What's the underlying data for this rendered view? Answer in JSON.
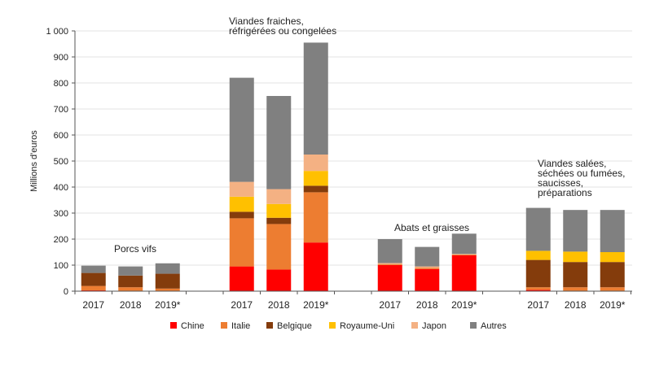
{
  "chart_data": {
    "type": "bar",
    "stacked": true,
    "ylabel": "Millions d'euros",
    "ylim": [
      0,
      1000
    ],
    "yticks": [
      0,
      100,
      200,
      300,
      400,
      500,
      600,
      700,
      800,
      900,
      1000
    ],
    "ytick_labels": [
      "0",
      "100",
      "200",
      "300",
      "400",
      "500",
      "600",
      "700",
      "800",
      "900",
      "1 000"
    ],
    "grid": true,
    "legend_position": "bottom",
    "groups": [
      {
        "label": "Porcs vifs",
        "categories": [
          "2017",
          "2018",
          "2019*"
        ]
      },
      {
        "label": "Viandes fraiches, réfrigérées ou congelées",
        "label_lines": [
          "Viandes fraiches,",
          "réfrigérées ou congelées"
        ],
        "categories": [
          "2017",
          "2018",
          "2019*"
        ]
      },
      {
        "label": "Abats et graisses",
        "categories": [
          "2017",
          "2018",
          "2019*"
        ]
      },
      {
        "label": "Viandes salées, séchées ou fumées, saucisses, préparations",
        "label_lines": [
          "Viandes salées,",
          "séchées ou fumées,",
          "saucisses,",
          "préparations"
        ],
        "categories": [
          "2017",
          "2018",
          "2019*"
        ]
      }
    ],
    "series": [
      {
        "name": "Chine",
        "color": "#ff0000",
        "values": [
          [
            3,
            0,
            0
          ],
          [
            95,
            83,
            187
          ],
          [
            100,
            85,
            138
          ],
          [
            5,
            0,
            0
          ]
        ]
      },
      {
        "name": "Italie",
        "color": "#ed7d31",
        "values": [
          [
            17,
            15,
            10
          ],
          [
            185,
            175,
            193
          ],
          [
            3,
            5,
            3
          ],
          [
            10,
            15,
            15
          ]
        ]
      },
      {
        "name": "Belgique",
        "color": "#843c0c",
        "values": [
          [
            50,
            45,
            57
          ],
          [
            25,
            24,
            25
          ],
          [
            0,
            0,
            0
          ],
          [
            105,
            97,
            97
          ]
        ]
      },
      {
        "name": "Royaume-Uni",
        "color": "#ffc000",
        "values": [
          [
            0,
            0,
            0
          ],
          [
            58,
            53,
            57
          ],
          [
            0,
            0,
            0
          ],
          [
            35,
            40,
            38
          ]
        ]
      },
      {
        "name": "Japon",
        "color": "#f4b183",
        "values": [
          [
            0,
            0,
            0
          ],
          [
            57,
            57,
            63
          ],
          [
            5,
            5,
            2
          ],
          [
            0,
            0,
            0
          ]
        ]
      },
      {
        "name": "Autres",
        "color": "#808080",
        "values": [
          [
            28,
            35,
            40
          ],
          [
            400,
            358,
            430
          ],
          [
            92,
            75,
            78
          ],
          [
            165,
            160,
            162
          ]
        ]
      }
    ]
  }
}
